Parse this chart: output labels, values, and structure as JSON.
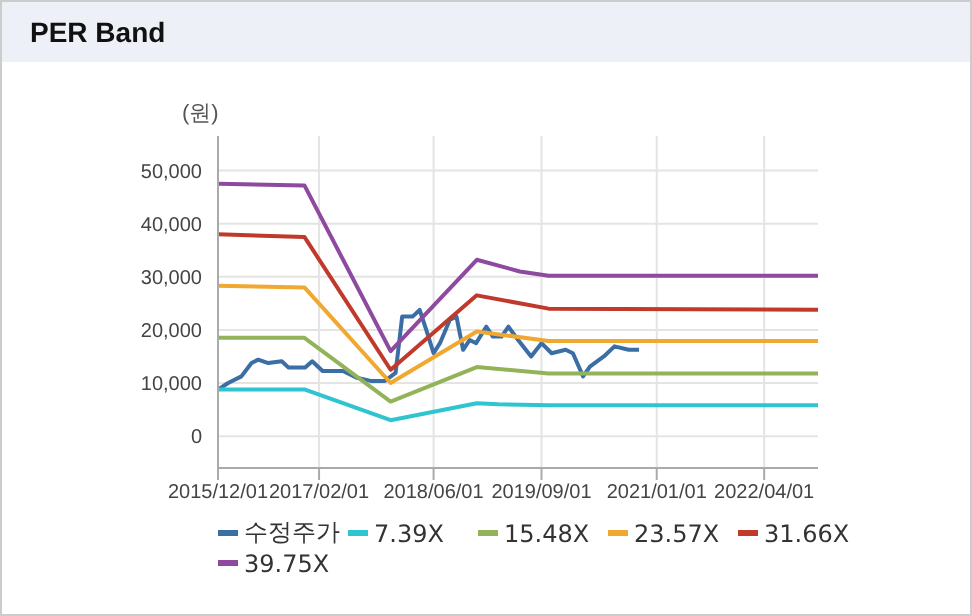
{
  "chart_data": {
    "type": "line",
    "title": "PER Band",
    "ylabel": "(원)",
    "xlim": [
      "2015-12-01",
      "2022-11-15"
    ],
    "ylim": [
      -6000,
      56500
    ],
    "xticks": [
      {
        "value": "2015-12-01",
        "label": "2015/12/01"
      },
      {
        "value": "2017-02-01",
        "label": "2017/02/01"
      },
      {
        "value": "2018-06-01",
        "label": "2018/06/01"
      },
      {
        "value": "2019-09-01",
        "label": "2019/09/01"
      },
      {
        "value": "2021-01-01",
        "label": "2021/01/01"
      },
      {
        "value": "2022-04-01",
        "label": "2022/04/01"
      }
    ],
    "yticks": [
      {
        "value": 0,
        "label": "0"
      },
      {
        "value": 10000,
        "label": "10,000"
      },
      {
        "value": 20000,
        "label": "20,000"
      },
      {
        "value": 30000,
        "label": "30,000"
      },
      {
        "value": 40000,
        "label": "40,000"
      },
      {
        "value": 50000,
        "label": "50,000"
      }
    ],
    "grid": true,
    "legend": "bottom",
    "marker": "none",
    "line_style": "solid",
    "series": [
      {
        "name": "수정주가",
        "color": "#3a6ea5",
        "x": [
          "2015-12-01",
          "2016-01-13",
          "2016-03-09",
          "2016-04-21",
          "2016-05-19",
          "2016-07-01",
          "2016-08-27",
          "2016-09-25",
          "2016-12-04",
          "2017-01-03",
          "2017-02-16",
          "2017-05-13",
          "2017-07-10",
          "2017-09-08",
          "2017-11-07",
          "2017-12-22",
          "2018-01-19",
          "2018-03-04",
          "2018-04-03",
          "2018-05-01",
          "2018-06-01",
          "2018-06-28",
          "2018-08-09",
          "2018-09-06",
          "2018-10-04",
          "2018-11-01",
          "2018-11-28",
          "2019-01-10",
          "2019-02-07",
          "2019-03-16",
          "2019-04-14",
          "2019-05-25",
          "2019-07-19",
          "2019-09-01",
          "2019-10-14",
          "2019-12-12",
          "2020-01-12",
          "2020-02-24",
          "2020-03-24",
          "2020-05-22",
          "2020-07-06",
          "2020-09-04",
          "2020-10-18"
        ],
        "values": [
          8750,
          10000,
          11250,
          13750,
          14400,
          13750,
          14100,
          12900,
          12900,
          14100,
          12250,
          12250,
          11000,
          10400,
          10400,
          11900,
          22500,
          22500,
          23750,
          20000,
          15600,
          17500,
          21900,
          22500,
          16250,
          18100,
          17500,
          20600,
          18750,
          18750,
          20600,
          18100,
          15000,
          17500,
          15600,
          16250,
          15600,
          11250,
          13100,
          15000,
          16900,
          16250,
          16250
        ]
      },
      {
        "name": "7.39X",
        "color": "#2ec4d0",
        "x": [
          "2015-12-01",
          "2016-12-01",
          "2017-12-01",
          "2018-12-01",
          "2019-03-01",
          "2019-10-01",
          "2022-11-15"
        ],
        "values": [
          8800,
          8800,
          3000,
          6200,
          6000,
          5800,
          5800
        ]
      },
      {
        "name": "15.48X",
        "color": "#93b35a",
        "x": [
          "2015-12-01",
          "2016-12-01",
          "2017-12-01",
          "2018-12-01",
          "2019-10-01",
          "2022-11-15"
        ],
        "values": [
          18500,
          18500,
          6500,
          13000,
          11800,
          11800
        ]
      },
      {
        "name": "23.57X",
        "color": "#f0a830",
        "x": [
          "2015-12-01",
          "2016-12-01",
          "2017-12-01",
          "2018-12-01",
          "2019-10-01",
          "2022-11-15"
        ],
        "values": [
          28300,
          28000,
          10000,
          19700,
          17900,
          17900
        ]
      },
      {
        "name": "31.66X",
        "color": "#c0392b",
        "x": [
          "2015-12-01",
          "2016-12-01",
          "2017-12-01",
          "2018-12-01",
          "2019-10-01",
          "2022-11-15"
        ],
        "values": [
          38000,
          37500,
          12500,
          26500,
          24000,
          23800
        ]
      },
      {
        "name": "39.75X",
        "color": "#8e4a9e",
        "x": [
          "2015-12-01",
          "2016-12-01",
          "2017-12-01",
          "2018-12-01",
          "2019-06-01",
          "2019-10-01",
          "2022-11-15"
        ],
        "values": [
          47500,
          47200,
          16000,
          33200,
          31000,
          30200,
          30200
        ]
      }
    ]
  }
}
